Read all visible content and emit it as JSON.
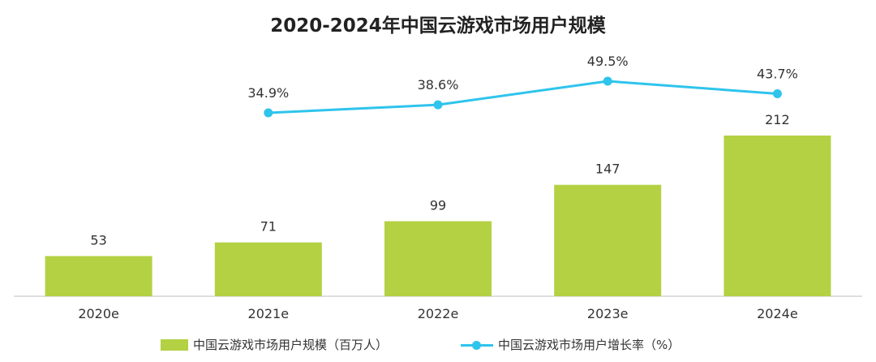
{
  "chart_data": {
    "type": "bar+line",
    "title": "2020-2024年中国云游戏市场用户规模",
    "categories": [
      "2020e",
      "2021e",
      "2022e",
      "2023e",
      "2024e"
    ],
    "series": [
      {
        "name": "中国云游戏市场用户规模（百万人）",
        "type": "bar",
        "color": "#b3d143",
        "values": [
          53,
          71,
          99,
          147,
          212
        ],
        "labels": [
          "53",
          "71",
          "99",
          "147",
          "212"
        ]
      },
      {
        "name": "中国云游戏市场用户增长率（%）",
        "type": "line",
        "color": "#2ec4ec",
        "values": [
          null,
          34.9,
          38.6,
          49.5,
          43.7
        ],
        "labels": [
          "",
          "34.9%",
          "38.6%",
          "49.5%",
          "43.7%"
        ]
      }
    ],
    "ylim_bar": [
      0,
      212
    ],
    "legend_position": "bottom"
  }
}
